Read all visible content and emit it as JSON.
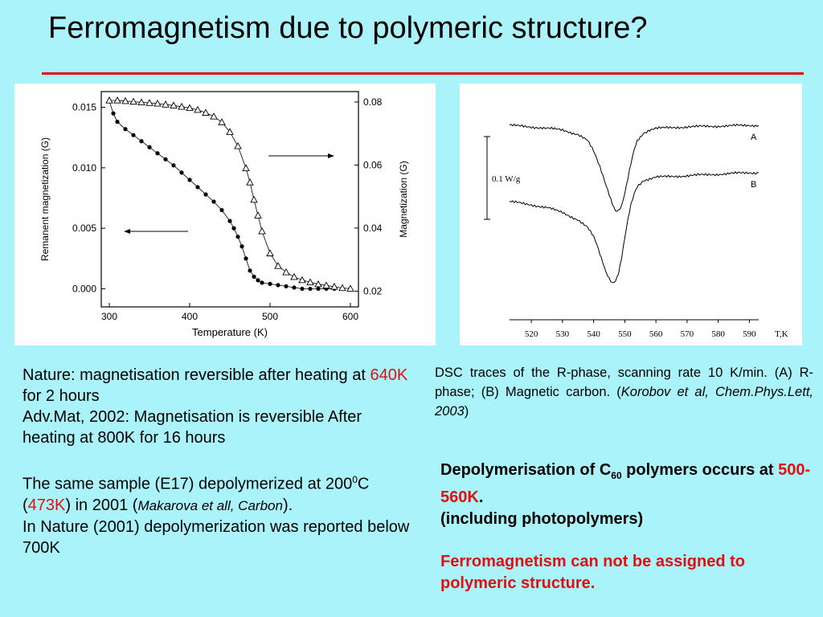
{
  "slide": {
    "title": "Ferromagnetism due to polymeric structure?",
    "accent_color": "#e01010",
    "background_color": "#aaf3fa"
  },
  "chart_data": [
    {
      "type": "scatter",
      "title": "",
      "xlabel": "Temperature (K)",
      "ylabel_left": "Remanent magnetization (G)",
      "ylabel_right": "Magnetization (G)",
      "xlim": [
        290,
        610
      ],
      "ylim_left": [
        -0.0015,
        0.0163
      ],
      "ylim_right": [
        0.015,
        0.0833
      ],
      "x_ticks": [
        300,
        400,
        500,
        600
      ],
      "y_ticks_left": [
        "0.000",
        "0.005",
        "0.010",
        "0.015"
      ],
      "y_ticks_right": [
        "0.02",
        "0.04",
        "0.06",
        "0.08"
      ],
      "grid": false,
      "series": [
        {
          "marker": "filled-circle",
          "axis": "left",
          "x": [
            300,
            305,
            310,
            320,
            330,
            340,
            350,
            360,
            370,
            380,
            390,
            400,
            410,
            420,
            430,
            440,
            450,
            455,
            460,
            465,
            470,
            475,
            480,
            485,
            490,
            500,
            510,
            520,
            530,
            540,
            550,
            560,
            570,
            580
          ],
          "y": [
            0.0155,
            0.0145,
            0.0138,
            0.0132,
            0.0127,
            0.0122,
            0.0117,
            0.0112,
            0.0107,
            0.0102,
            0.0096,
            0.009,
            0.0084,
            0.0078,
            0.0072,
            0.0065,
            0.0056,
            0.005,
            0.0043,
            0.0035,
            0.0025,
            0.0015,
            0.001,
            0.0007,
            0.0005,
            0.0004,
            0.0003,
            0.0002,
            0.0001,
            0.0,
            0.0,
            0.0,
            0.0,
            0.0
          ]
        },
        {
          "marker": "open-triangle",
          "axis": "right",
          "x": [
            300,
            310,
            320,
            330,
            340,
            350,
            360,
            370,
            380,
            390,
            400,
            410,
            420,
            430,
            440,
            450,
            460,
            470,
            475,
            480,
            485,
            490,
            500,
            510,
            520,
            530,
            540,
            550,
            560,
            570,
            580,
            590,
            600
          ],
          "y": [
            0.0805,
            0.0805,
            0.0803,
            0.0801,
            0.0799,
            0.0797,
            0.0795,
            0.0792,
            0.0789,
            0.0785,
            0.0781,
            0.0775,
            0.0766,
            0.0754,
            0.0736,
            0.0705,
            0.066,
            0.059,
            0.0545,
            0.049,
            0.044,
            0.039,
            0.032,
            0.028,
            0.026,
            0.0245,
            0.0235,
            0.0228,
            0.0222,
            0.0218,
            0.0214,
            0.021,
            0.0208
          ]
        }
      ]
    },
    {
      "type": "line",
      "title": "",
      "xlabel": "T,K",
      "xlim": [
        513,
        593
      ],
      "x_ticks": [
        520,
        530,
        540,
        550,
        560,
        570,
        580,
        590
      ],
      "scale_label": "0.1 W/g",
      "series": [
        {
          "name": "A",
          "x": [
            513,
            520,
            530,
            535,
            538,
            540,
            542,
            544,
            546,
            547,
            548,
            549,
            550,
            551,
            552,
            553,
            554,
            556,
            558,
            560,
            570,
            580,
            590,
            593
          ],
          "y": [
            0.0,
            -0.01,
            -0.03,
            -0.06,
            -0.1,
            -0.17,
            -0.27,
            -0.39,
            -0.51,
            -0.56,
            -0.56,
            -0.53,
            -0.45,
            -0.35,
            -0.25,
            -0.16,
            -0.1,
            -0.05,
            -0.03,
            -0.02,
            -0.01,
            -0.005,
            0.0,
            0.0
          ]
        },
        {
          "name": "B",
          "x": [
            513,
            520,
            525,
            530,
            535,
            538,
            540,
            541,
            542,
            543,
            544,
            545,
            546,
            547,
            548,
            549,
            550,
            551,
            552,
            553,
            554,
            556,
            558,
            560,
            570,
            580,
            590,
            593
          ],
          "y": [
            -0.5,
            -0.52,
            -0.54,
            -0.57,
            -0.62,
            -0.67,
            -0.73,
            -0.78,
            -0.84,
            -0.9,
            -0.96,
            -1.0,
            -1.03,
            -1.02,
            -0.97,
            -0.87,
            -0.74,
            -0.62,
            -0.52,
            -0.45,
            -0.4,
            -0.36,
            -0.35,
            -0.34,
            -0.33,
            -0.32,
            -0.31,
            -0.31
          ]
        }
      ]
    }
  ],
  "left_text": {
    "p1_a": "Nature: magnetisation reversible after heating at ",
    "p1_red": "640K",
    "p1_b": " for 2 hours",
    "p2": "Adv.Mat, 2002: Magnetisation is reversible After heating at 800K for 16 hours",
    "p3_a": "The same sample (E17) depolymerized at 200",
    "p3_sup": "0",
    "p3_b": "C (",
    "p3_red": "473K",
    "p3_c": ") in 2001 (",
    "p3_italic": "Makarova et all, Carbon",
    "p3_d": ").",
    "p4": "In Nature (2001) depolymerization was reported below 700K"
  },
  "caption": {
    "text_a": "DSC traces of the R-phase, scanning rate 10 K/min. (A) R-phase; (B) Magnetic carbon. (",
    "italic": "Korobov et al, Chem.Phys.Lett, 2003",
    "text_b": ")"
  },
  "right_text": {
    "p1_a": "Depolymerisation of C",
    "p1_sub": "60",
    "p1_b": " polymers occurs at ",
    "p1_red": "500-560K",
    "p1_c": ".",
    "p2": "(including photopolymers)",
    "p3": "Ferromagnetism can not be assigned to polymeric structure."
  }
}
